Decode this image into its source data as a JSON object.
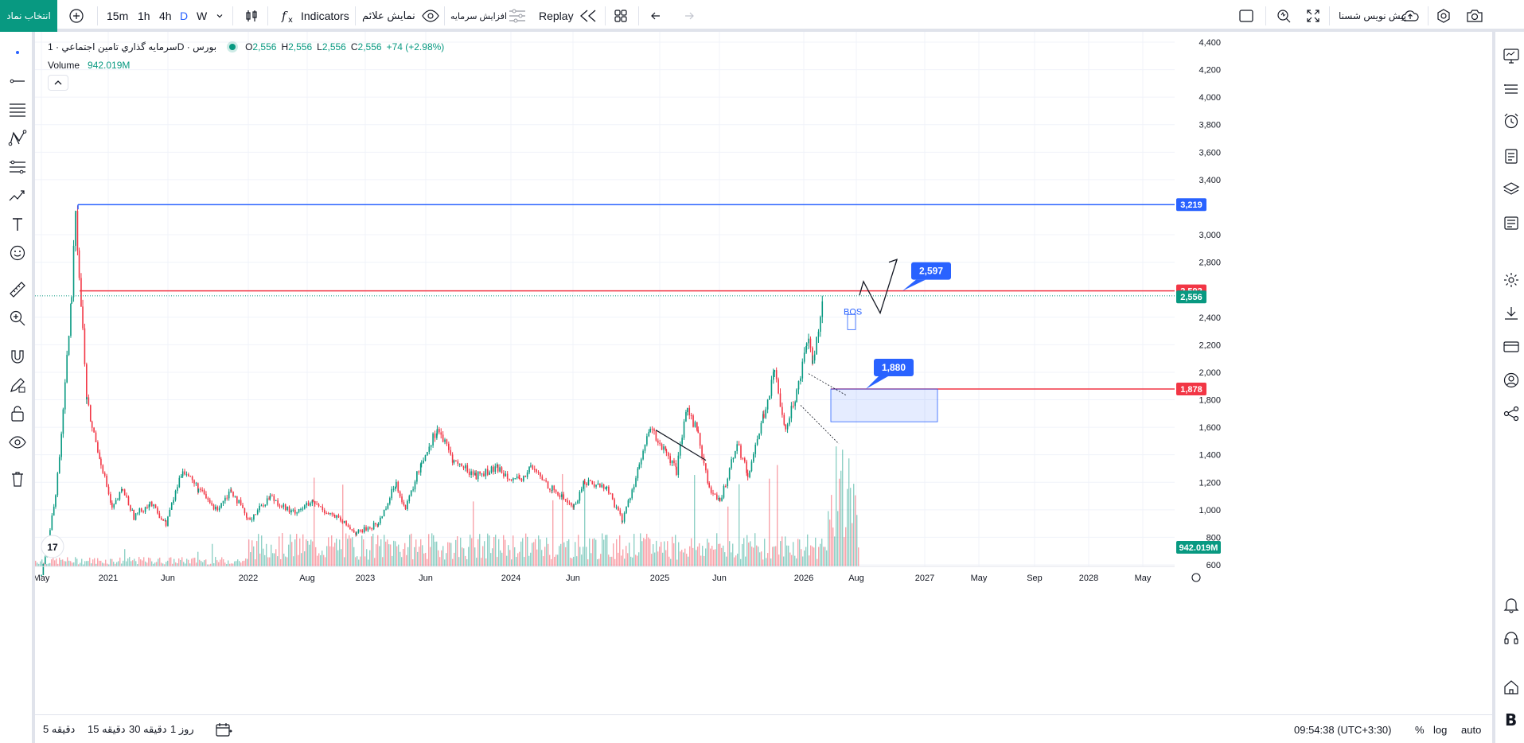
{
  "toolbar": {
    "symbol_button": "انتخاب نماد",
    "intervals": [
      "15m",
      "1h",
      "4h",
      "D",
      "W"
    ],
    "active_interval": "D",
    "indicators_label": "Indicators",
    "show_signs_label": "نمایش علائم",
    "add_capital_label": "افزایش سرمایه",
    "replay_label": "Replay",
    "drafts_label": "پیش نویس شسنا",
    "icons": [
      "plus-circle-icon",
      "chevron-down-icon",
      "candles-icon",
      "fx-icon",
      "eye-icon",
      "sliders-icon",
      "rewind-icon",
      "layout-grid-icon",
      "undo-icon",
      "redo-icon",
      "square-icon",
      "quick-search-icon",
      "fullscreen-icon",
      "cloud-upload-icon",
      "settings-hex-icon",
      "camera-icon"
    ]
  },
  "legend": {
    "title": "سرمایه گذاري تامین اجتماعي · 1D · بورس",
    "open_key": "O",
    "open": "2,556",
    "high_key": "H",
    "high": "2,556",
    "low_key": "L",
    "low": "2,556",
    "close_key": "C",
    "close": "2,556",
    "change": "+74 (+2.98%)",
    "volume_label": "Volume",
    "volume_value": "942.019M"
  },
  "chart_data": {
    "type": "candlestick",
    "title": "",
    "price_axis": [
      "4,400",
      "4,200",
      "4,000",
      "3,800",
      "3,600",
      "3,400",
      "3,000",
      "2,800",
      "2,400",
      "2,200",
      "2,000",
      "1,800",
      "1,600",
      "1,400",
      "1,200",
      "1,000",
      "800",
      "600"
    ],
    "ylim": [
      480,
      4450
    ],
    "time_axis": [
      "May",
      "2021",
      "Jun",
      "2022",
      "Aug",
      "2023",
      "Jun",
      "2024",
      "Jun",
      "2025",
      "Jun",
      "2026",
      "Aug",
      "2027",
      "May",
      "Sep",
      "2028",
      "May"
    ],
    "price_path": [
      [
        "2020-05-01",
        520
      ],
      [
        "2020-05-20",
        780
      ],
      [
        "2020-06-10",
        1100
      ],
      [
        "2020-07-01",
        1700
      ],
      [
        "2020-07-25",
        2550
      ],
      [
        "2020-08-05",
        3219
      ],
      [
        "2020-08-15",
        2700
      ],
      [
        "2020-08-25",
        2300
      ],
      [
        "2020-09-05",
        1800
      ],
      [
        "2020-09-20",
        1600
      ],
      [
        "2020-10-15",
        1350
      ],
      [
        "2020-11-15",
        1000
      ],
      [
        "2020-12-15",
        1150
      ],
      [
        "2021-01-15",
        950
      ],
      [
        "2021-03-01",
        1050
      ],
      [
        "2021-04-15",
        900
      ],
      [
        "2021-06-01",
        1300
      ],
      [
        "2021-07-15",
        1150
      ],
      [
        "2021-09-01",
        1000
      ],
      [
        "2021-10-15",
        1150
      ],
      [
        "2021-12-01",
        920
      ],
      [
        "2022-02-01",
        1100
      ],
      [
        "2022-04-01",
        980
      ],
      [
        "2022-06-01",
        1050
      ],
      [
        "2022-08-01",
        950
      ],
      [
        "2022-10-01",
        830
      ],
      [
        "2022-12-01",
        900
      ],
      [
        "2023-01-20",
        1200
      ],
      [
        "2023-02-15",
        1000
      ],
      [
        "2023-04-01",
        1350
      ],
      [
        "2023-05-15",
        1590
      ],
      [
        "2023-07-01",
        1350
      ],
      [
        "2023-09-01",
        1250
      ],
      [
        "2023-11-01",
        1300
      ],
      [
        "2024-01-01",
        1200
      ],
      [
        "2024-02-01",
        1310
      ],
      [
        "2024-04-01",
        1150
      ],
      [
        "2024-06-01",
        1020
      ],
      [
        "2024-07-01",
        1210
      ],
      [
        "2024-09-01",
        1160
      ],
      [
        "2024-10-15",
        920
      ],
      [
        "2024-12-01",
        1320
      ],
      [
        "2025-01-01",
        1590
      ],
      [
        "2025-02-15",
        1400
      ],
      [
        "2025-03-15",
        1280
      ],
      [
        "2025-04-15",
        1750
      ],
      [
        "2025-05-15",
        1550
      ],
      [
        "2025-06-15",
        1150
      ],
      [
        "2025-07-15",
        1050
      ],
      [
        "2025-09-01",
        1500
      ],
      [
        "2025-10-01",
        1250
      ],
      [
        "2025-11-15",
        1700
      ],
      [
        "2025-12-15",
        1990
      ],
      [
        "2026-01-15",
        1600
      ],
      [
        "2026-02-15",
        1850
      ],
      [
        "2026-03-15",
        2250
      ],
      [
        "2026-04-01",
        2100
      ],
      [
        "2026-05-01",
        2556
      ]
    ],
    "volume_label_value": "942.019M"
  },
  "drawings": {
    "hline_top": "3,219",
    "hline_mid": "2,592",
    "current_price": "2,556",
    "hline_low": "1,878",
    "target_callout": "2,597",
    "zone_callout": "1,880",
    "bos_label": "BOS"
  },
  "colors": {
    "up": "#089981",
    "down": "#f23645",
    "accent": "#2962ff",
    "hline_top": "#2962ff",
    "hline_red": "#f23645"
  },
  "bottom": {
    "ranges": [
      "5 دقیقه",
      "15 دقیقه",
      "30 دقیقه",
      "1 روز"
    ],
    "time": "09:54:38 (UTC+3:30)",
    "percent": "%",
    "log": "log",
    "auto": "auto"
  },
  "left_icons": [
    "cursor-dot-icon",
    "trend-line-icon",
    "fib-lines-icon",
    "pattern-icon",
    "projection-icon",
    "brush-icon",
    "text-icon",
    "emoji-icon",
    "ruler-icon",
    "zoom-in-icon",
    "magnet-icon",
    "pencil-lock-icon",
    "lock-icon",
    "eye-icon",
    "trash-icon"
  ],
  "right_icons": [
    "monitor-icon",
    "menu-icon",
    "alarm-clock-icon",
    "calendar-icon",
    "layers-icon",
    "news-icon",
    "settings-icon",
    "download-icon",
    "card-icon",
    "user-icon",
    "share-icon",
    "bell-icon",
    "headset-icon",
    "home-icon",
    "brand-b-icon"
  ]
}
